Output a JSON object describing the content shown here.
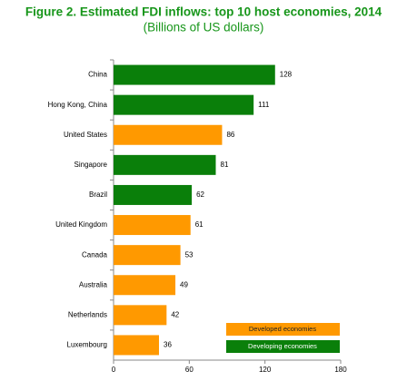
{
  "chart_data": {
    "type": "bar",
    "orientation": "horizontal",
    "title": "Figure 2.  Estimated FDI inflows: top 10 host economies, 2014",
    "subtitle": "(Billions of US dollars)",
    "categories": [
      "China",
      "Hong Kong, China",
      "United States",
      "Singapore",
      "Brazil",
      "United Kingdom",
      "Canada",
      "Australia",
      "Netherlands",
      "Luxembourg"
    ],
    "values": [
      128,
      111,
      86,
      81,
      62,
      61,
      53,
      49,
      42,
      36
    ],
    "colors": [
      "#0a7f0a",
      "#0a7f0a",
      "#ff9900",
      "#0a7f0a",
      "#0a7f0a",
      "#ff9900",
      "#ff9900",
      "#ff9900",
      "#ff9900",
      "#ff9900"
    ],
    "legend": [
      {
        "name": "Developed economies",
        "color": "#ff9900"
      },
      {
        "name": "Developing economies",
        "color": "#0a7f0a"
      }
    ],
    "xlim": [
      0,
      180
    ],
    "xticks": [
      0,
      60,
      120,
      180
    ]
  }
}
